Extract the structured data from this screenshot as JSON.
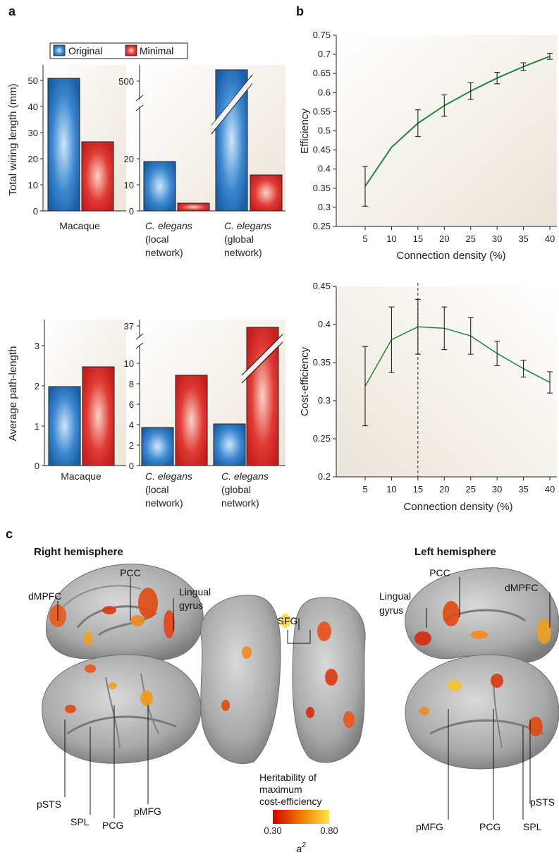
{
  "panels": {
    "a": "a",
    "b": "b",
    "c": "c"
  },
  "legend": {
    "original": "Original",
    "minimal": "Minimal",
    "colors": {
      "original": "#1f6fb8",
      "minimal": "#d42a2a"
    }
  },
  "chart_data": [
    {
      "type": "bar",
      "panel": "a-top",
      "ylabel": "Total wiring length (mm)",
      "groups": [
        {
          "categories": [
            "Macaque"
          ],
          "yticks": [
            "0",
            "10",
            "20",
            "30",
            "40",
            "50"
          ],
          "series": [
            {
              "name": "Original",
              "values": [
                50.8
              ]
            },
            {
              "name": "Minimal",
              "values": [
                26.5
              ]
            }
          ]
        },
        {
          "categories": [
            "C. elegans (local network)",
            "C. elegans (global network)"
          ],
          "yticks": [
            "0",
            "10",
            "20",
            "500"
          ],
          "axis_break": true,
          "series": [
            {
              "name": "Original",
              "values": [
                19.2,
                520
              ]
            },
            {
              "name": "Minimal",
              "values": [
                3.2,
                13.8
              ]
            }
          ]
        }
      ]
    },
    {
      "type": "bar",
      "panel": "a-bottom",
      "ylabel": "Average path-length",
      "groups": [
        {
          "categories": [
            "Macaque"
          ],
          "yticks": [
            "0",
            "1",
            "2",
            "3"
          ],
          "series": [
            {
              "name": "Original",
              "values": [
                1.97
              ]
            },
            {
              "name": "Minimal",
              "values": [
                2.45
              ]
            }
          ]
        },
        {
          "categories": [
            "C. elegans (local network)",
            "C. elegans (global network)"
          ],
          "yticks": [
            "0",
            "2",
            "4",
            "6",
            "8",
            "10",
            "37"
          ],
          "axis_break": true,
          "series": [
            {
              "name": "Original",
              "values": [
                3.7,
                4.0
              ]
            },
            {
              "name": "Minimal",
              "values": [
                8.8,
                37
              ]
            }
          ]
        }
      ]
    },
    {
      "type": "line",
      "panel": "b-top",
      "xlabel": "Connection density (%)",
      "ylabel": "Efficiency",
      "x": [
        5,
        10,
        15,
        20,
        25,
        30,
        35,
        40
      ],
      "y": [
        0.355,
        0.457,
        0.52,
        0.566,
        0.604,
        0.638,
        0.668,
        0.695
      ],
      "yerr": [
        0.052,
        0,
        0.035,
        0.028,
        0.022,
        0.015,
        0.01,
        0.008
      ],
      "ylim": [
        0.25,
        0.75
      ],
      "yticks": [
        "0.25",
        "0.3",
        "0.35",
        "0.4",
        "0.45",
        "0.5",
        "0.55",
        "0.6",
        "0.65",
        "0.7",
        "0.75"
      ],
      "xticks": [
        "5",
        "10",
        "15",
        "20",
        "25",
        "30",
        "35",
        "40"
      ]
    },
    {
      "type": "line",
      "panel": "b-bottom",
      "xlabel": "Connection density (%)",
      "ylabel": "Cost-efficiency",
      "x": [
        5,
        10,
        15,
        20,
        25,
        30,
        35,
        40
      ],
      "y": [
        0.319,
        0.38,
        0.397,
        0.395,
        0.385,
        0.362,
        0.342,
        0.324
      ],
      "yerr": [
        0.052,
        0.043,
        0.036,
        0.028,
        0.024,
        0.016,
        0.011,
        0.014
      ],
      "ylim": [
        0.2,
        0.45
      ],
      "yticks": [
        "0.2",
        "0.25",
        "0.3",
        "0.35",
        "0.4",
        "0.45"
      ],
      "xticks": [
        "5",
        "10",
        "15",
        "20",
        "25",
        "30",
        "35",
        "40"
      ],
      "vline_at": 15
    }
  ],
  "brain": {
    "right_hemisphere": "Right hemisphere",
    "left_hemisphere": "Left hemisphere",
    "labels": {
      "pcc": "PCC",
      "lingual1": "Lingual",
      "lingual2": "gyrus",
      "dmpfc": "dMPFC",
      "sfg": "SFG",
      "psts": "pSTS",
      "spl": "SPL",
      "pcg": "PCG",
      "pmfg": "pMFG"
    },
    "colorbar": {
      "title1": "Heritability of",
      "title2": "maximum",
      "title3": "cost-efficiency",
      "min": "0.30",
      "max": "0.80",
      "symbol": "a",
      "sup": "2",
      "colors": [
        "#d40000",
        "#f07a00",
        "#ffe44a"
      ]
    }
  }
}
